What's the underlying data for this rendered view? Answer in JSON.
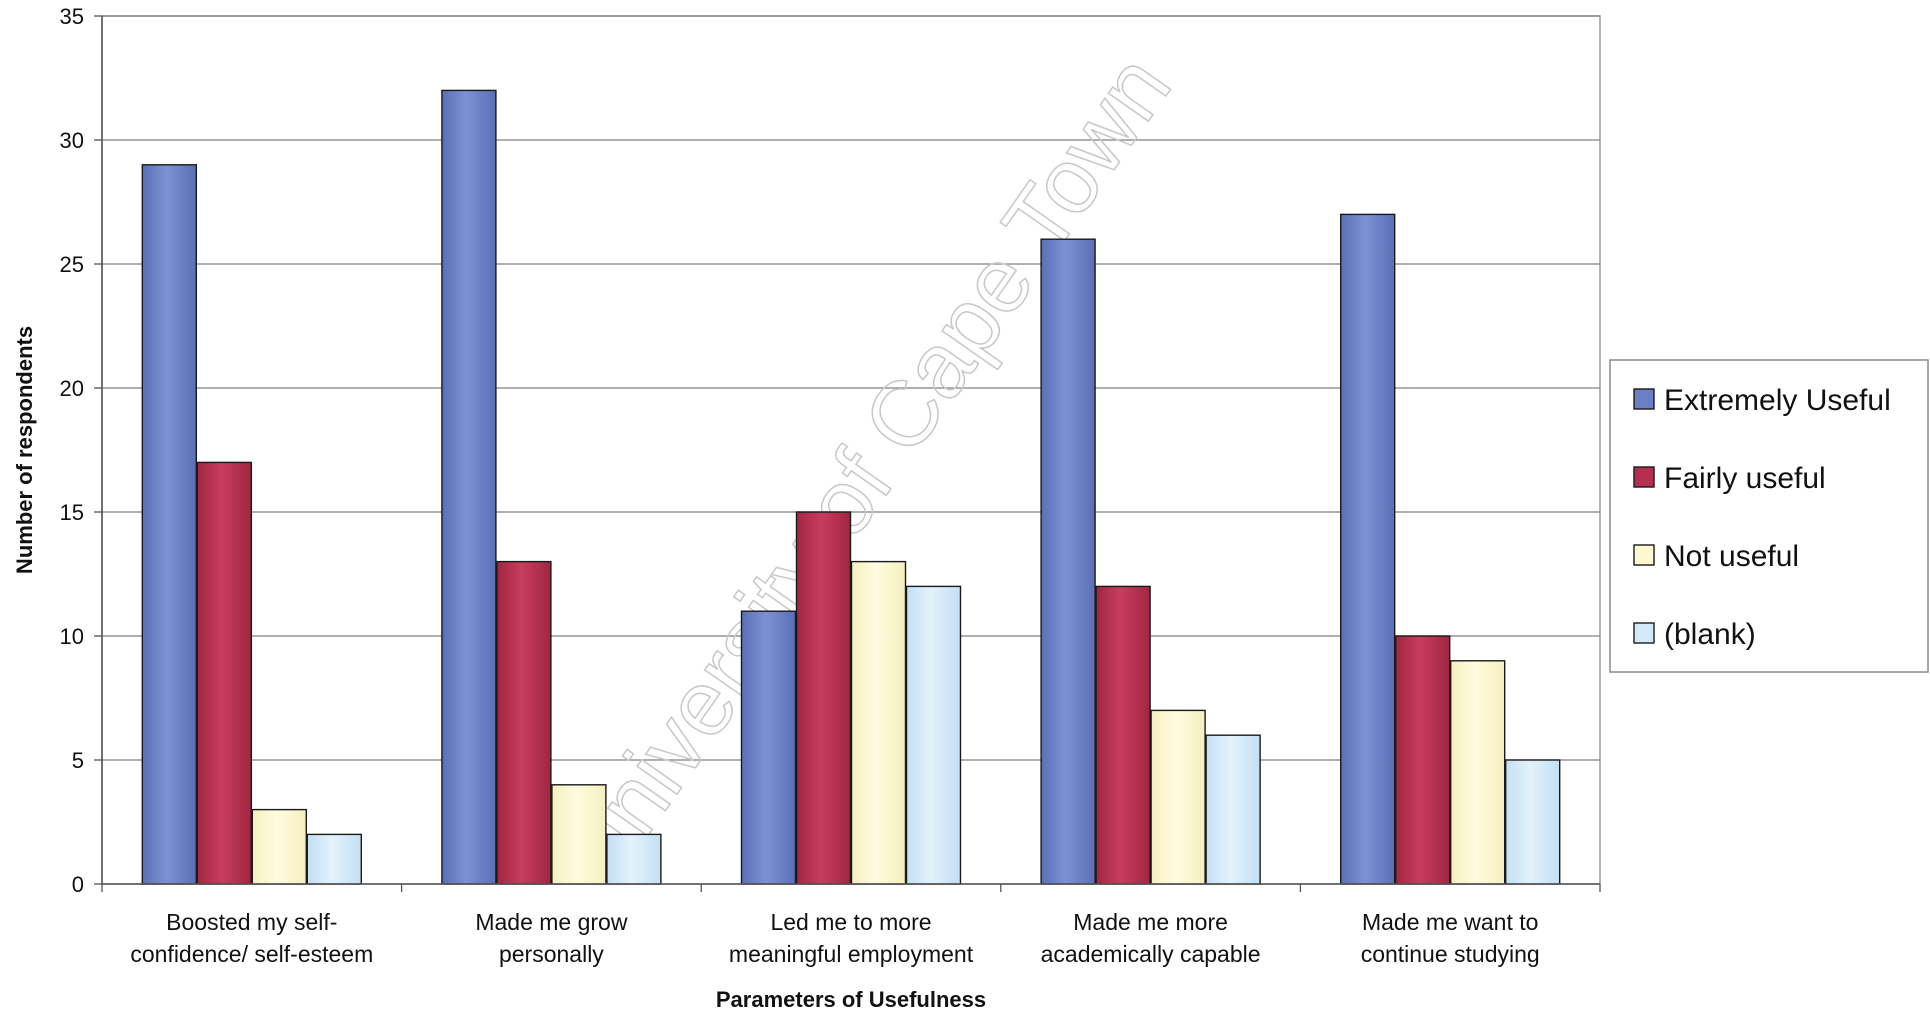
{
  "chart_data": {
    "type": "bar",
    "title": "",
    "xlabel": "Parameters of Usefulness",
    "ylabel": "Number of respondents",
    "ylim": [
      0,
      35
    ],
    "yticks": [
      0,
      5,
      10,
      15,
      20,
      25,
      30,
      35
    ],
    "grid": true,
    "legend_position": "right",
    "categories": [
      [
        "Boosted my self-",
        "confidence/ self-esteem"
      ],
      [
        "Made me grow",
        "personally"
      ],
      [
        "Led me to more",
        "meaningful employment"
      ],
      [
        "Made me more",
        "academically capable"
      ],
      [
        "Made me want to",
        "continue studying"
      ]
    ],
    "series": [
      {
        "name": "Extremely Useful",
        "color": "#6b80c4",
        "values": [
          29,
          32,
          11,
          26,
          27
        ]
      },
      {
        "name": "Fairly useful",
        "color": "#b43050",
        "values": [
          17,
          13,
          15,
          12,
          10
        ]
      },
      {
        "name": "Not useful",
        "color": "#fdf8d0",
        "values": [
          3,
          4,
          13,
          7,
          9
        ]
      },
      {
        "name": "(blank)",
        "color": "#d4e9f8",
        "values": [
          2,
          2,
          12,
          6,
          5
        ]
      }
    ]
  },
  "watermark": "University of Cape Town"
}
